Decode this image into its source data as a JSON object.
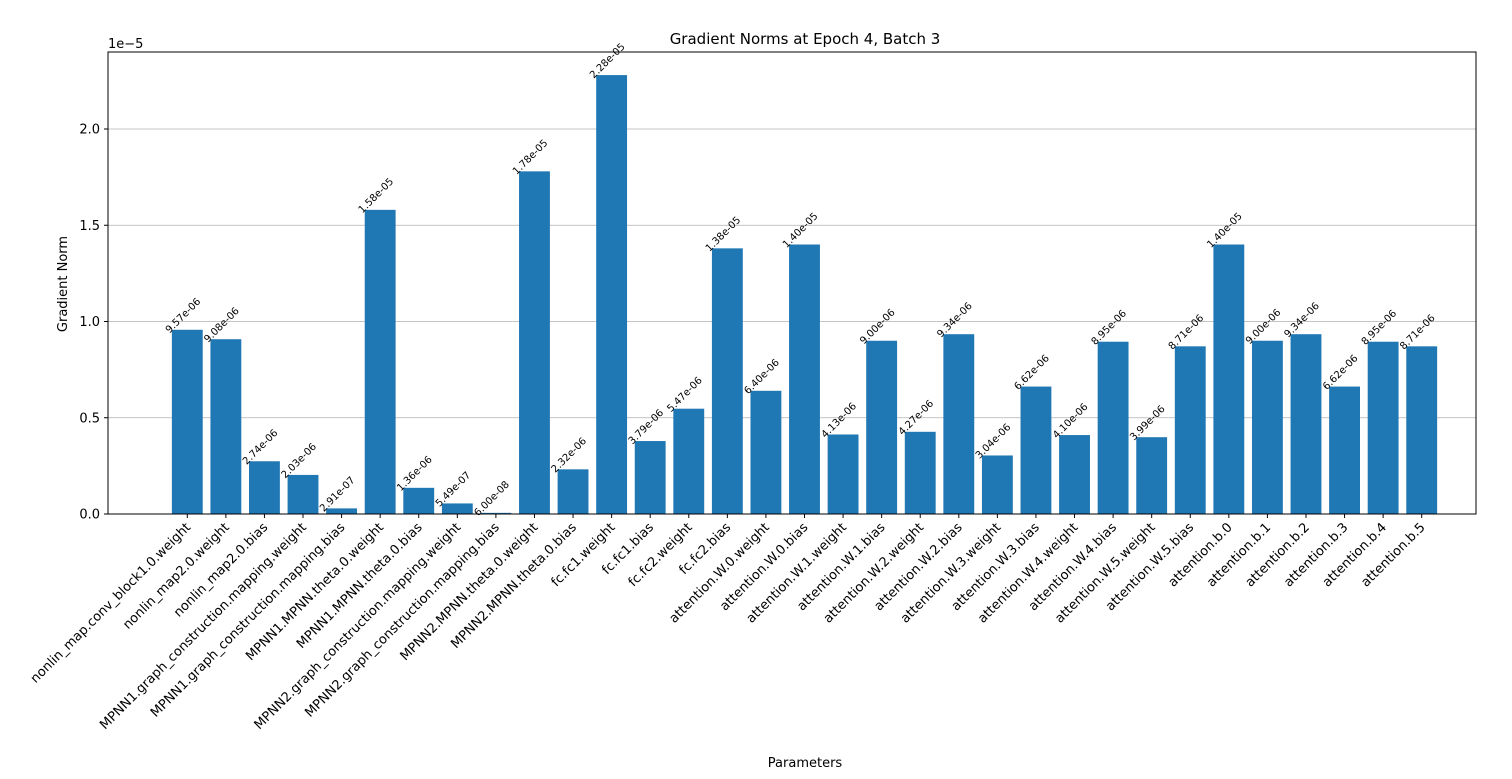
{
  "chart_data": {
    "type": "bar",
    "title": "Gradient Norms at Epoch 4, Batch 3",
    "xlabel": "Parameters",
    "ylabel": "Gradient Norm",
    "offset_text": "1e−5",
    "ylim": [
      0,
      2.4
    ],
    "yticks": [
      0.0,
      0.5,
      1.0,
      1.5,
      2.0
    ],
    "ytick_labels": [
      "0.0",
      "0.5",
      "1.0",
      "1.5",
      "2.0"
    ],
    "grid": "y",
    "bar_color": "#1f77b4",
    "categories": [
      "nonlin_map.conv_block1.0.weight",
      "nonlin_map2.0.weight",
      "nonlin_map2.0.bias",
      "MPNN1.graph_construction.mapping.weight",
      "MPNN1.graph_construction.mapping.bias",
      "MPNN1.MPNN.theta.0.weight",
      "MPNN1.MPNN.theta.0.bias",
      "MPNN2.graph_construction.mapping.weight",
      "MPNN2.graph_construction.mapping.bias",
      "MPNN2.MPNN.theta.0.weight",
      "MPNN2.MPNN.theta.0.bias",
      "fc.fc1.weight",
      "fc.fc1.bias",
      "fc.fc2.weight",
      "fc.fc2.bias",
      "attention.W.0.weight",
      "attention.W.0.bias",
      "attention.W.1.weight",
      "attention.W.1.bias",
      "attention.W.2.weight",
      "attention.W.2.bias",
      "attention.W.3.weight",
      "attention.W.3.bias",
      "attention.W.4.weight",
      "attention.W.4.bias",
      "attention.W.5.weight",
      "attention.W.5.bias",
      "attention.b.0",
      "attention.b.1",
      "attention.b.2",
      "attention.b.3",
      "attention.b.4",
      "attention.b.5"
    ],
    "values": [
      0.957,
      0.908,
      0.274,
      0.203,
      0.0291,
      1.58,
      0.136,
      0.0549,
      0.006,
      1.78,
      0.232,
      2.28,
      0.379,
      0.547,
      1.38,
      0.64,
      1.4,
      0.413,
      0.9,
      0.427,
      0.934,
      0.304,
      0.662,
      0.41,
      0.895,
      0.399,
      0.871,
      1.4,
      0.9,
      0.934,
      0.662,
      0.895,
      0.871
    ],
    "value_labels": [
      "9.57e-06",
      "9.08e-06",
      "2.74e-06",
      "2.03e-06",
      "2.91e-07",
      "1.58e-05",
      "1.36e-06",
      "5.49e-07",
      "6.00e-08",
      "1.78e-05",
      "2.32e-06",
      "2.28e-05",
      "3.79e-06",
      "5.47e-06",
      "1.38e-05",
      "6.40e-06",
      "1.40e-05",
      "4.13e-06",
      "9.00e-06",
      "4.27e-06",
      "9.34e-06",
      "3.04e-06",
      "6.62e-06",
      "4.10e-06",
      "8.95e-06",
      "3.99e-06",
      "8.71e-06",
      "1.40e-05",
      "9.00e-06",
      "9.34e-06",
      "6.62e-06",
      "8.95e-06",
      "8.71e-06"
    ]
  }
}
